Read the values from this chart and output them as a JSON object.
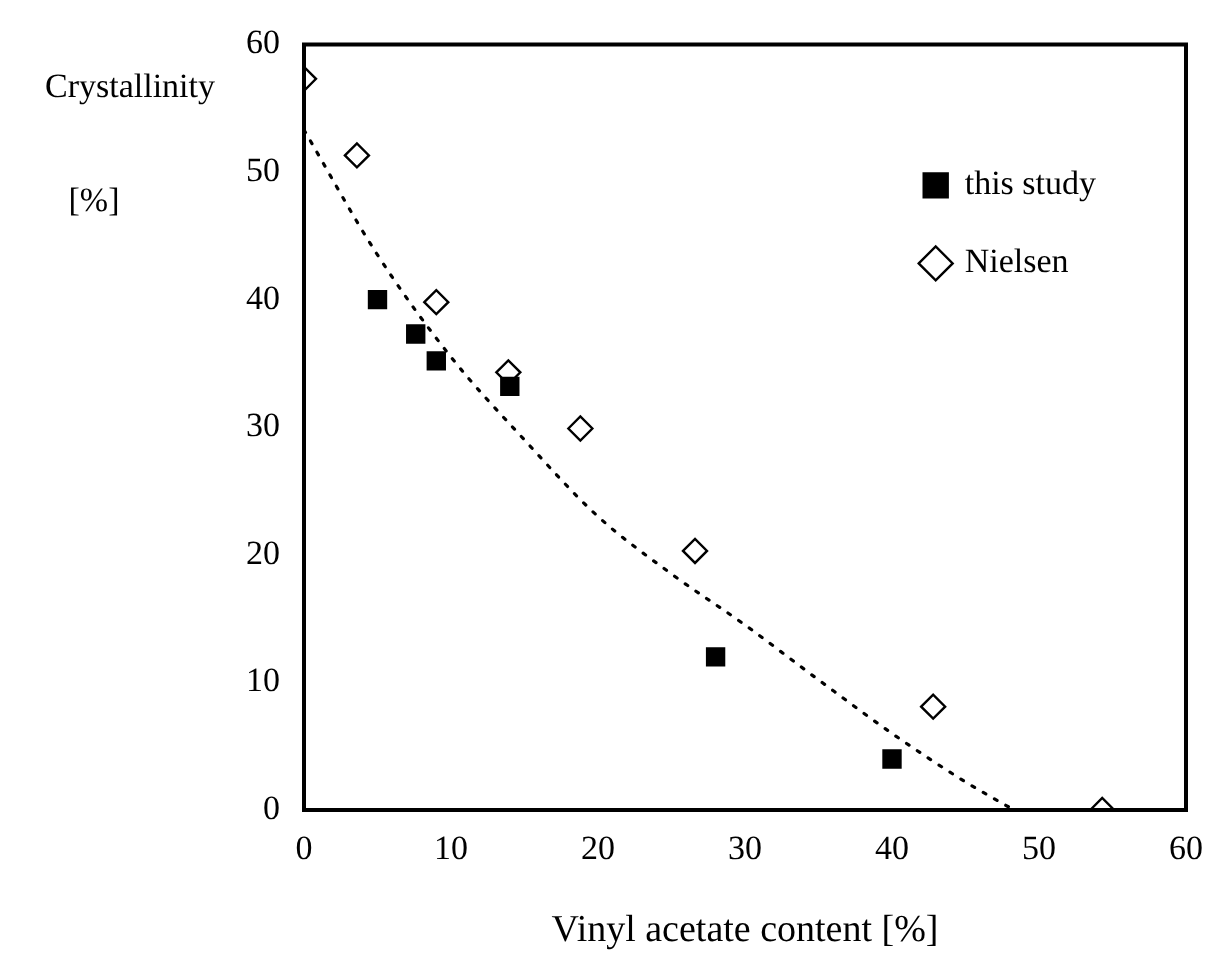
{
  "chart_data": {
    "type": "scatter",
    "xlabel": "Vinyl acetate content [%]",
    "ylabel": "Crystallinity [%]",
    "xlim": [
      0,
      60
    ],
    "xticks": [
      0,
      10,
      20,
      30,
      40,
      50,
      60
    ],
    "ylim": [
      0,
      60
    ],
    "yticks": [
      0,
      10,
      20,
      30,
      40,
      50,
      60
    ],
    "grid": false,
    "legend": "top right",
    "series": [
      {
        "name": "this study",
        "color": "#000000",
        "marker": "square",
        "x": [
          5,
          7.6,
          9,
          14,
          28,
          40
        ],
        "values": [
          40,
          37.3,
          35.2,
          33.2,
          12,
          4
        ]
      },
      {
        "name": "Nielsen",
        "color": "#000000",
        "marker": "diamond",
        "x": [
          0,
          3.6,
          9,
          13.9,
          18.8,
          26.6,
          42.8,
          54.3
        ],
        "values": [
          57.3,
          51.3,
          39.8,
          34.3,
          29.9,
          20.3,
          8.1,
          0
        ]
      },
      {
        "type": "line",
        "color": "#000000",
        "line_style": "dotted",
        "marker": "none",
        "x": [
          0,
          5,
          10,
          15,
          20,
          25,
          30,
          35,
          40,
          45,
          48.3
        ],
        "values": [
          53.3,
          43.5,
          35.5,
          29,
          23,
          18.5,
          14.5,
          10.2,
          6,
          2.2,
          0
        ]
      }
    ]
  }
}
